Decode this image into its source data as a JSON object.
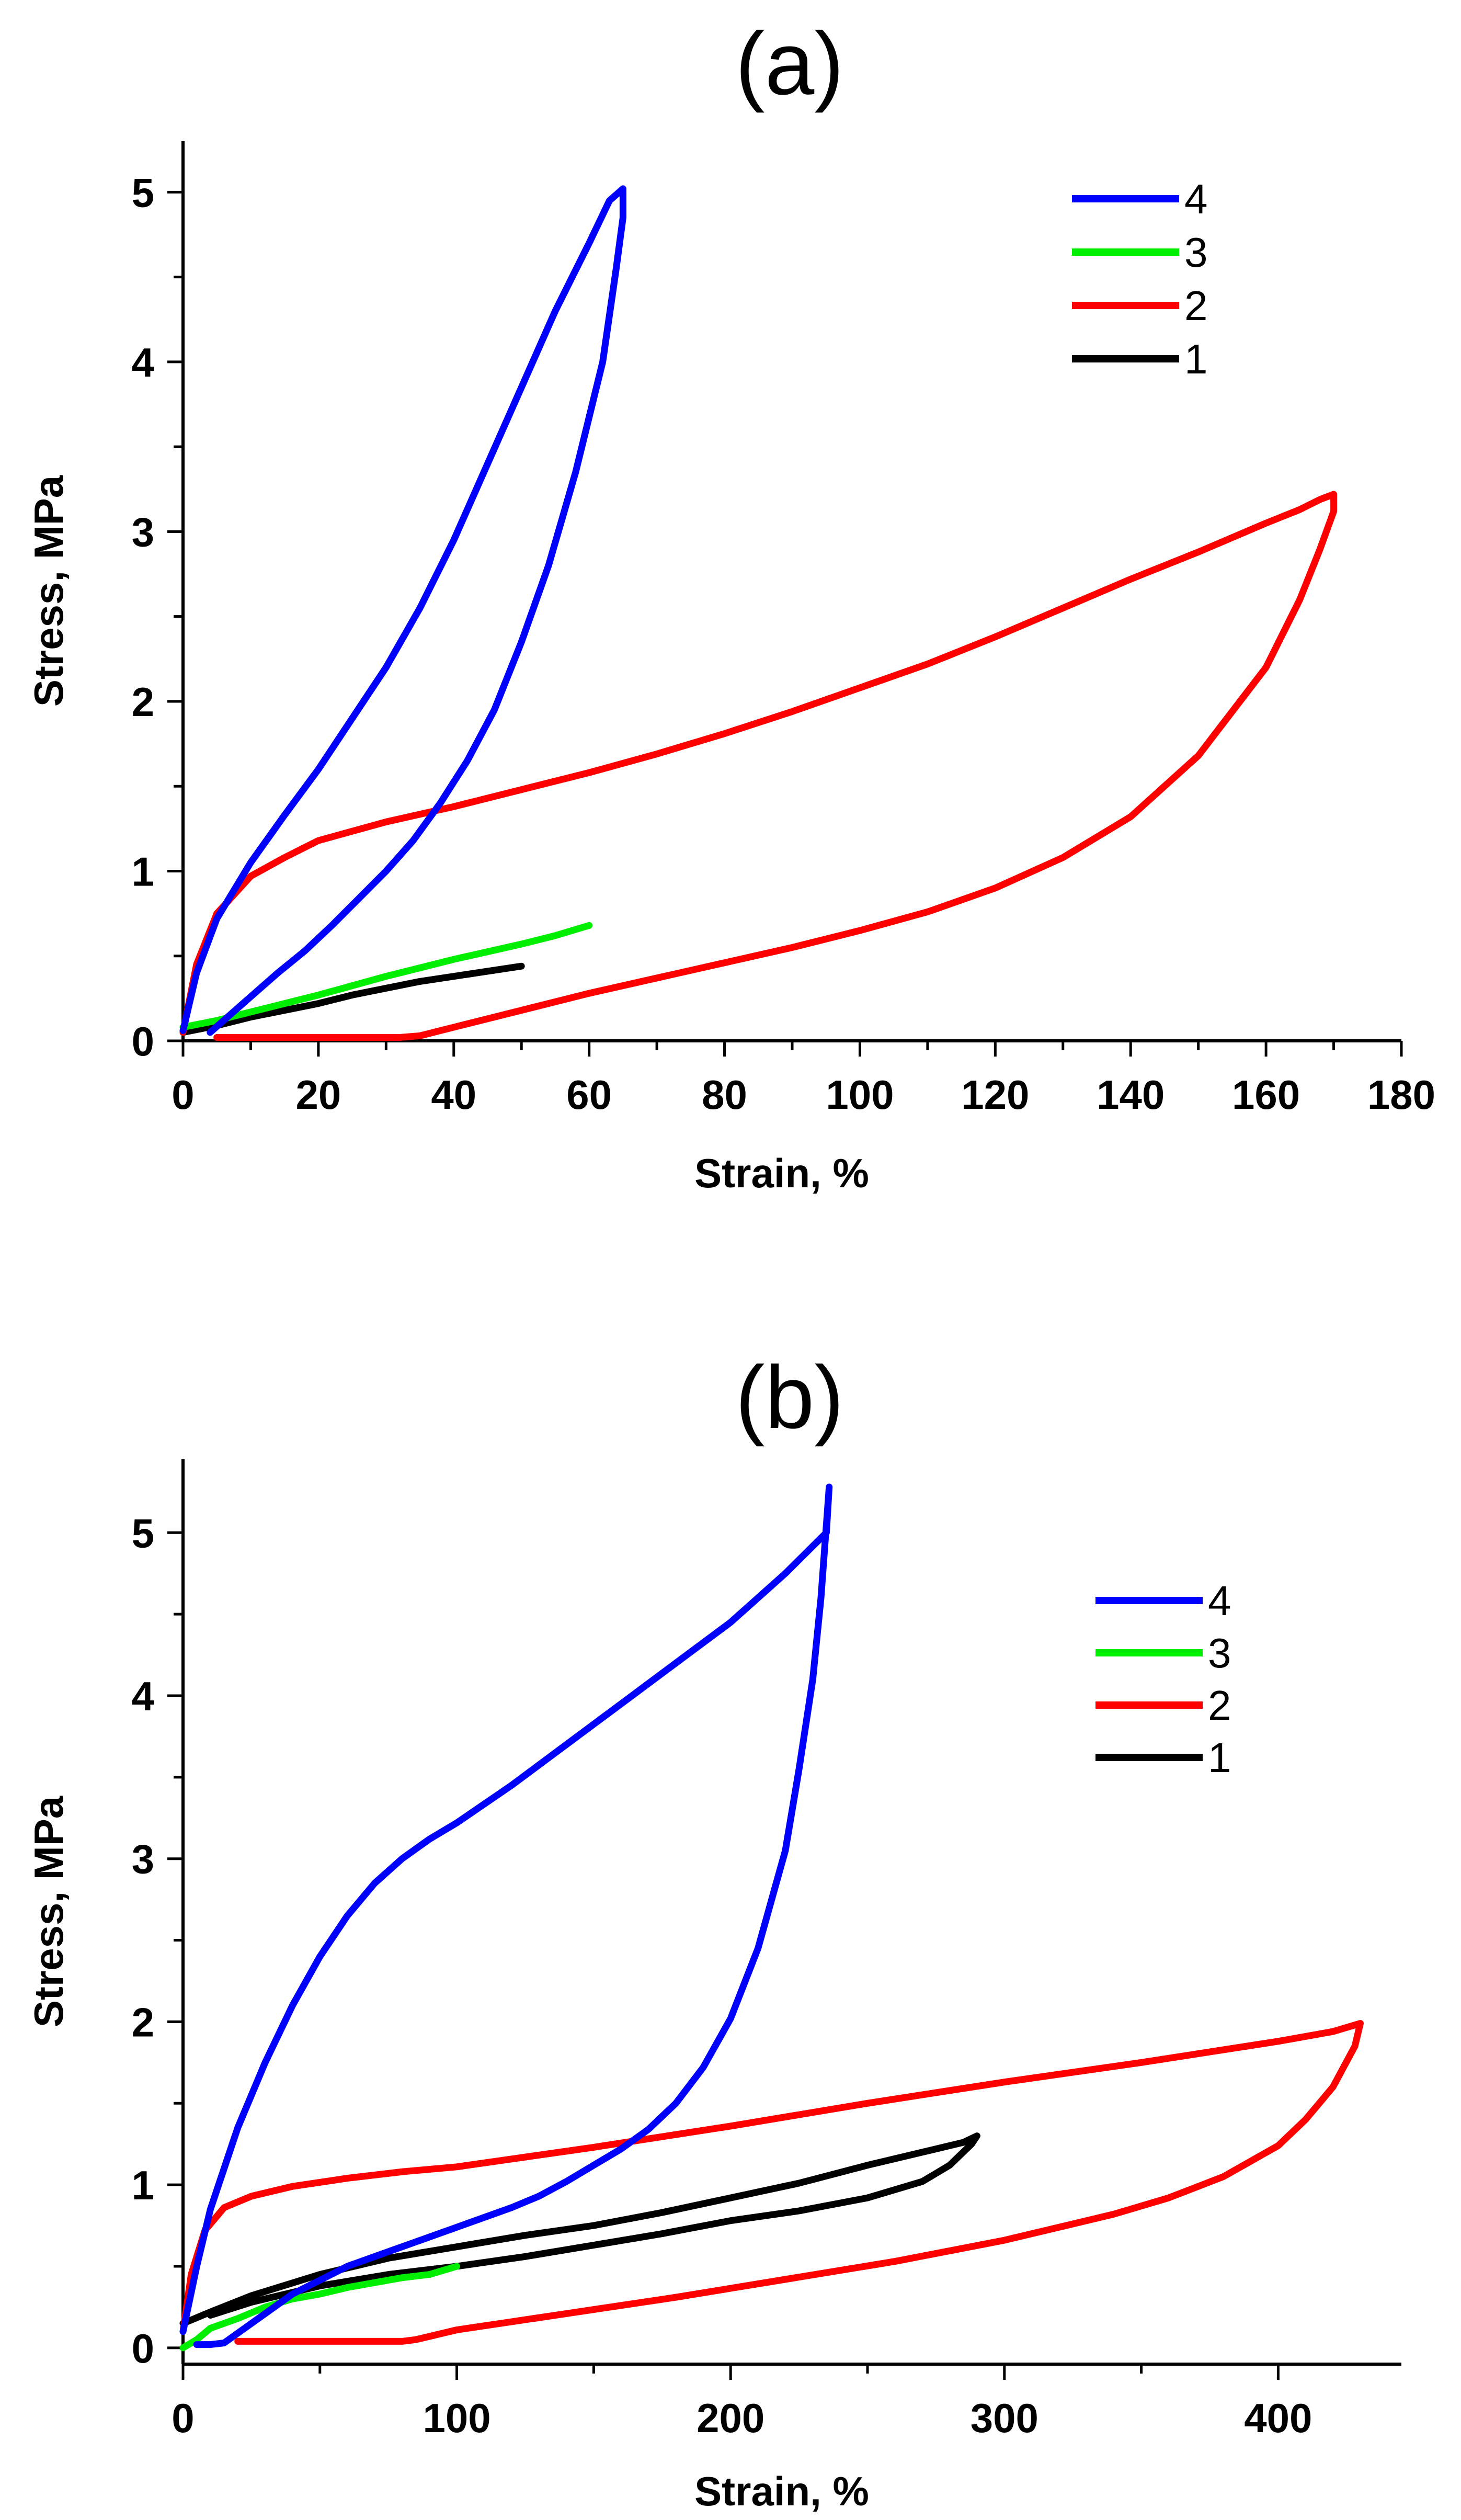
{
  "chart_data": [
    {
      "type": "line",
      "title": "(a)",
      "xlabel": "Strain, %",
      "ylabel": "Stress, MPa",
      "xlim": [
        0,
        180
      ],
      "ylim": [
        0,
        5.3
      ],
      "xticks": [
        0,
        20,
        40,
        60,
        80,
        100,
        120,
        140,
        160,
        180
      ],
      "yticks": [
        0,
        1,
        2,
        3,
        4,
        5
      ],
      "legend_position": "top-right",
      "series": [
        {
          "name": "4",
          "color": "#0000ff",
          "x": [
            0,
            2,
            5,
            10,
            15,
            20,
            25,
            30,
            35,
            40,
            45,
            50,
            55,
            60,
            63,
            65,
            65,
            64,
            62,
            58,
            54,
            50,
            46,
            42,
            38,
            34,
            30,
            26,
            22,
            18,
            14,
            10,
            6,
            4
          ],
          "y": [
            0.06,
            0.4,
            0.72,
            1.05,
            1.33,
            1.6,
            1.9,
            2.2,
            2.55,
            2.95,
            3.4,
            3.85,
            4.3,
            4.7,
            4.95,
            5.02,
            4.85,
            4.55,
            4.0,
            3.35,
            2.8,
            2.35,
            1.95,
            1.65,
            1.4,
            1.18,
            1.0,
            0.84,
            0.68,
            0.53,
            0.4,
            0.26,
            0.12,
            0.05
          ]
        },
        {
          "name": "3",
          "color": "#00ee00",
          "x": [
            0,
            5,
            10,
            20,
            30,
            40,
            50,
            55,
            60
          ],
          "y": [
            0.08,
            0.12,
            0.17,
            0.27,
            0.38,
            0.48,
            0.57,
            0.62,
            0.68
          ]
        },
        {
          "name": "2",
          "color": "#ff0000",
          "x": [
            0,
            2,
            5,
            10,
            15,
            20,
            30,
            40,
            50,
            60,
            70,
            80,
            90,
            100,
            110,
            120,
            130,
            140,
            150,
            160,
            165,
            168,
            170,
            170,
            168,
            165,
            160,
            150,
            140,
            130,
            120,
            110,
            100,
            90,
            80,
            70,
            60,
            50,
            40,
            35,
            32,
            30,
            20,
            10,
            5
          ],
          "y": [
            0.05,
            0.45,
            0.75,
            0.97,
            1.08,
            1.18,
            1.29,
            1.38,
            1.48,
            1.58,
            1.69,
            1.81,
            1.94,
            2.08,
            2.22,
            2.38,
            2.55,
            2.72,
            2.88,
            3.05,
            3.13,
            3.19,
            3.22,
            3.12,
            2.9,
            2.6,
            2.2,
            1.68,
            1.32,
            1.08,
            0.9,
            0.76,
            0.65,
            0.55,
            0.46,
            0.37,
            0.28,
            0.18,
            0.08,
            0.03,
            0.02,
            0.02,
            0.02,
            0.02,
            0.02
          ]
        },
        {
          "name": "1",
          "color": "#000000",
          "x": [
            0,
            5,
            10,
            15,
            20,
            25,
            30,
            35,
            40,
            45,
            50
          ],
          "y": [
            0.05,
            0.09,
            0.14,
            0.18,
            0.22,
            0.27,
            0.31,
            0.35,
            0.38,
            0.41,
            0.44
          ]
        }
      ]
    },
    {
      "type": "line",
      "title": "(b)",
      "xlabel": "Strain, %",
      "ylabel": "Stress, MPa",
      "xlim": [
        0,
        445
      ],
      "ylim": [
        -0.1,
        5.45
      ],
      "xticks": [
        0,
        100,
        200,
        300,
        400
      ],
      "yticks": [
        0,
        1,
        2,
        3,
        4,
        5
      ],
      "legend_position": "top-right",
      "series": [
        {
          "name": "4",
          "color": "#0000ff",
          "x": [
            0,
            5,
            10,
            20,
            30,
            40,
            50,
            60,
            70,
            80,
            90,
            100,
            120,
            140,
            160,
            180,
            200,
            220,
            235,
            236,
            235,
            233,
            230,
            225,
            220,
            210,
            200,
            190,
            180,
            170,
            160,
            150,
            140,
            130,
            120,
            100,
            80,
            60,
            40,
            25,
            15,
            10,
            5
          ],
          "y": [
            0.1,
            0.5,
            0.85,
            1.35,
            1.75,
            2.1,
            2.4,
            2.65,
            2.85,
            3.0,
            3.12,
            3.22,
            3.45,
            3.7,
            3.95,
            4.2,
            4.45,
            4.75,
            5.0,
            5.28,
            5.05,
            4.6,
            4.1,
            3.55,
            3.05,
            2.45,
            2.02,
            1.72,
            1.5,
            1.34,
            1.22,
            1.12,
            1.02,
            0.93,
            0.86,
            0.74,
            0.62,
            0.5,
            0.33,
            0.15,
            0.03,
            0.02,
            0.02
          ]
        },
        {
          "name": "3",
          "color": "#00ee00",
          "x": [
            0,
            5,
            10,
            20,
            30,
            40,
            50,
            60,
            70,
            80,
            90,
            100
          ],
          "y": [
            0.0,
            0.05,
            0.12,
            0.18,
            0.25,
            0.3,
            0.33,
            0.37,
            0.4,
            0.43,
            0.45,
            0.5
          ]
        },
        {
          "name": "2",
          "color": "#ff0000",
          "x": [
            0,
            3,
            8,
            15,
            25,
            40,
            60,
            80,
            100,
            150,
            200,
            250,
            300,
            350,
            400,
            420,
            428,
            430,
            428,
            420,
            410,
            400,
            380,
            360,
            340,
            320,
            300,
            260,
            220,
            180,
            140,
            120,
            100,
            90,
            85,
            80,
            60,
            40,
            20
          ],
          "y": [
            0.1,
            0.45,
            0.72,
            0.86,
            0.93,
            0.99,
            1.04,
            1.08,
            1.11,
            1.23,
            1.36,
            1.5,
            1.63,
            1.75,
            1.88,
            1.94,
            1.98,
            1.99,
            1.85,
            1.6,
            1.4,
            1.24,
            1.05,
            0.92,
            0.82,
            0.74,
            0.66,
            0.53,
            0.42,
            0.31,
            0.21,
            0.16,
            0.11,
            0.07,
            0.05,
            0.04,
            0.04,
            0.04,
            0.04
          ]
        },
        {
          "name": "1",
          "color": "#000000",
          "x": [
            0,
            10,
            25,
            50,
            75,
            100,
            125,
            150,
            175,
            200,
            225,
            250,
            270,
            285,
            290,
            288,
            280,
            270,
            250,
            225,
            200,
            175,
            150,
            125,
            100,
            75,
            50,
            25,
            10
          ],
          "y": [
            0.15,
            0.22,
            0.32,
            0.45,
            0.55,
            0.62,
            0.69,
            0.75,
            0.83,
            0.92,
            1.01,
            1.12,
            1.2,
            1.26,
            1.3,
            1.25,
            1.12,
            1.02,
            0.92,
            0.84,
            0.78,
            0.7,
            0.63,
            0.56,
            0.5,
            0.45,
            0.38,
            0.28,
            0.2
          ]
        }
      ]
    }
  ]
}
